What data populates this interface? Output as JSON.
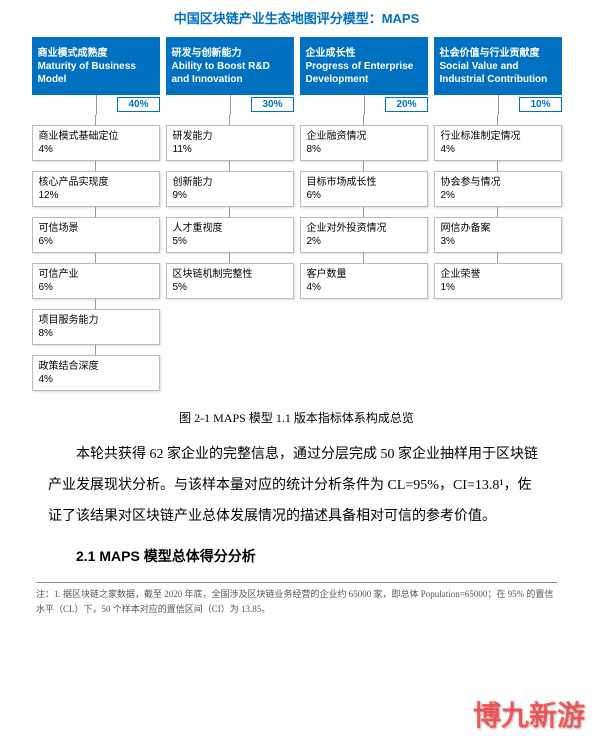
{
  "title": "中国区块链产业生态地图评分模型：MAPS",
  "columns": [
    {
      "header_cn": "商业模式成熟度",
      "header_en": "Maturity of Business Model",
      "weight": "40%",
      "items": [
        {
          "label": "商业模式基础定位",
          "pct": "4%"
        },
        {
          "label": "核心产品实现度",
          "pct": "12%"
        },
        {
          "label": "可信场景",
          "pct": "6%"
        },
        {
          "label": "可信产业",
          "pct": "6%"
        },
        {
          "label": "项目服务能力",
          "pct": "8%"
        },
        {
          "label": "政策结合深度",
          "pct": "4%"
        }
      ]
    },
    {
      "header_cn": "研发与创新能力",
      "header_en": "Ability to Boost R&D and Innovation",
      "weight": "30%",
      "items": [
        {
          "label": "研发能力",
          "pct": "11%"
        },
        {
          "label": "创新能力",
          "pct": "9%"
        },
        {
          "label": "人才重视度",
          "pct": "5%"
        },
        {
          "label": "区块链机制完整性",
          "pct": "5%"
        }
      ]
    },
    {
      "header_cn": "企业成长性",
      "header_en": "Progress of Enterprise Development",
      "weight": "20%",
      "items": [
        {
          "label": "企业融资情况",
          "pct": "8%"
        },
        {
          "label": "目标市场成长性",
          "pct": "6%"
        },
        {
          "label": "企业对外投资情况",
          "pct": "2%"
        },
        {
          "label": "客户数量",
          "pct": "4%"
        }
      ]
    },
    {
      "header_cn": "社会价值与行业贡献度",
      "header_en": "Social Value and Industrial Contribution",
      "weight": "10%",
      "items": [
        {
          "label": "行业标准制定情况",
          "pct": "4%"
        },
        {
          "label": "协会参与情况",
          "pct": "2%"
        },
        {
          "label": "网信办备案",
          "pct": "3%"
        },
        {
          "label": "企业荣誉",
          "pct": "1%"
        }
      ]
    }
  ],
  "caption": "图 2-1 MAPS 模型 1.1 版本指标体系构成总览",
  "body": "本轮共获得 62 家企业的完整信息，通过分层完成 50 家企业抽样用于区块链产业发展现状分析。与该样本量对应的统计分析条件为 CL=95%，CI=13.8¹，佐证了该结果对区块链产业总体发展情况的描述具备相对可信的参考价值。",
  "section_heading": "2.1 MAPS 模型总体得分分析",
  "footnote": "注：1. 据区块链之家数据，截至 2020 年底，全国涉及区块链业务经营的企业约 65000 家，即总体 Population=65000；在 95% 的置信水平（CL）下，50 个样本对应的置信区间（CI）为 13.85。",
  "watermark": "博九新游",
  "colors": {
    "primary": "#0070c0",
    "box_border": "#bbbbbb",
    "connector": "#999999",
    "watermark": "rgba(255,40,40,0.7)"
  }
}
